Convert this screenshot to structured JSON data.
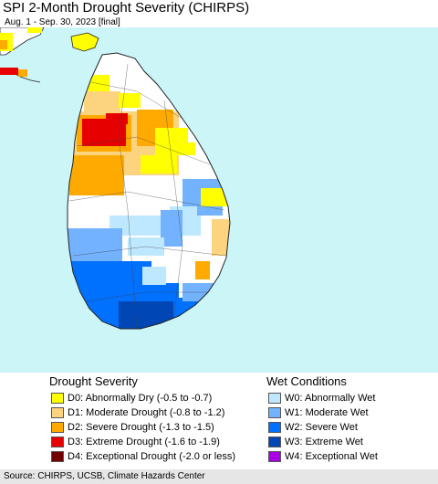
{
  "header": {
    "title": "SPI 2-Month Drought Severity (CHIRPS)",
    "subtitle": "Aug. 1 - Sep. 30, 2023 [final]"
  },
  "map": {
    "region": "Sri Lanka",
    "ocean_color": "#ccf5f7",
    "land_color": "#ffffff"
  },
  "legend": {
    "drought": {
      "heading": "Drought Severity",
      "items": [
        {
          "label": "D0: Abnormally Dry (-0.5 to -0.7)",
          "color": "#ffff00"
        },
        {
          "label": "D1: Moderate Drought (-0.8 to -1.2)",
          "color": "#fcd37f"
        },
        {
          "label": "D2: Severe Drought (-1.3 to -1.5)",
          "color": "#ffaa00"
        },
        {
          "label": "D3: Extreme Drought (-1.6 to -1.9)",
          "color": "#e60000"
        },
        {
          "label": "D4: Exceptional Drought (-2.0 or less)",
          "color": "#730000"
        }
      ]
    },
    "wet": {
      "heading": "Wet Conditions",
      "items": [
        {
          "label": "W0: Abnormally Wet",
          "color": "#bee8ff"
        },
        {
          "label": "W1: Moderate Wet",
          "color": "#73b2ff"
        },
        {
          "label": "W2: Severe Wet",
          "color": "#0070ff"
        },
        {
          "label": "W3: Extreme Wet",
          "color": "#0046b4"
        },
        {
          "label": "W4: Exceptional Wet",
          "color": "#a900e6"
        }
      ]
    }
  },
  "footer": {
    "source": "Source: CHIRPS, UCSB, Climate Hazards Center"
  }
}
